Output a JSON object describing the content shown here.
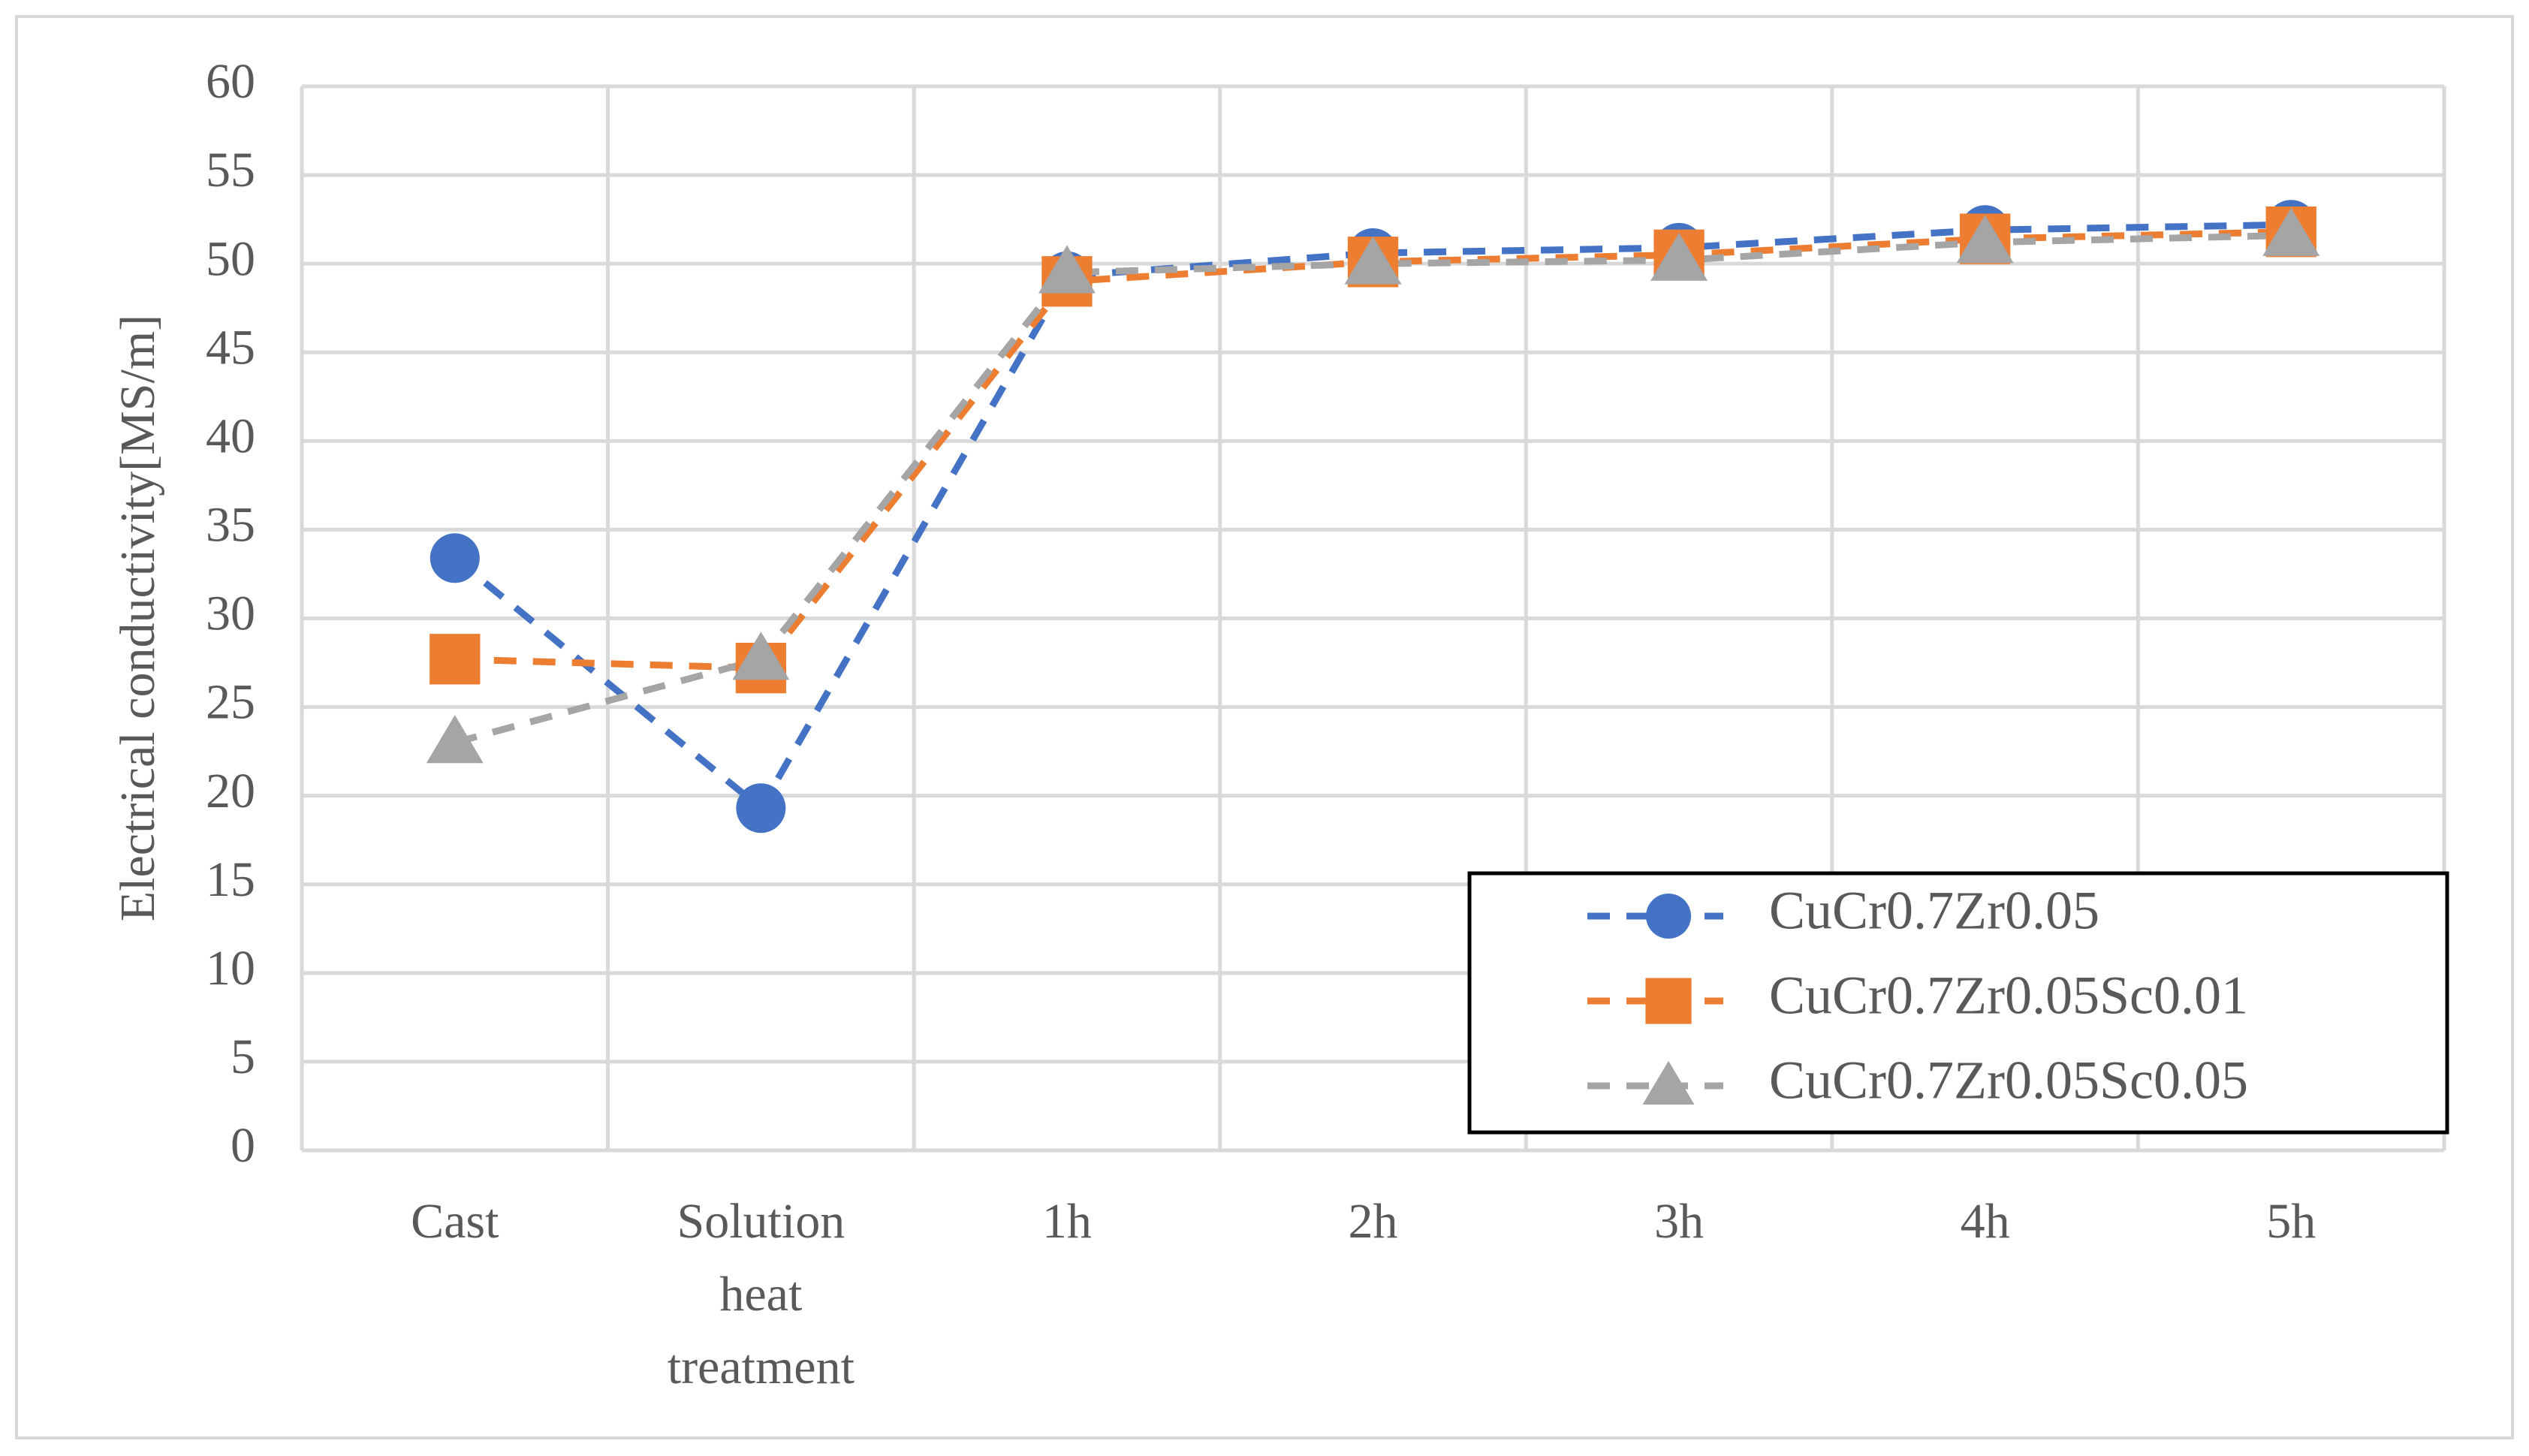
{
  "chart_data": {
    "type": "line",
    "title": "",
    "xlabel": "",
    "ylabel": "Electrical conductivity[MS/m]",
    "ylim": [
      0,
      60
    ],
    "yticks": [
      0,
      5,
      10,
      15,
      20,
      25,
      30,
      35,
      40,
      45,
      50,
      55,
      60
    ],
    "grid": true,
    "legend_position": "bottom-right",
    "categories": [
      [
        "Cast"
      ],
      [
        "Solution",
        "heat",
        "treatment"
      ],
      [
        "1h"
      ],
      [
        "2h"
      ],
      [
        "3h"
      ],
      [
        "4h"
      ],
      [
        "5h"
      ]
    ],
    "series": [
      {
        "name": "CuCr0.7Zr0.05",
        "values": [
          33.4,
          19.3,
          49.3,
          50.6,
          50.9,
          51.9,
          52.2
        ],
        "color": "#4472C4",
        "marker": "circle"
      },
      {
        "name": "CuCr0.7Zr0.05Sc0.01",
        "values": [
          27.7,
          27.2,
          49.0,
          50.1,
          50.5,
          51.4,
          51.8
        ],
        "color": "#ED7D31",
        "marker": "square"
      },
      {
        "name": "CuCr0.7Zr0.05Sc0.05",
        "values": [
          23.0,
          27.7,
          49.5,
          50.0,
          50.2,
          51.2,
          51.6
        ],
        "color": "#A5A5A5",
        "marker": "triangle"
      }
    ]
  }
}
